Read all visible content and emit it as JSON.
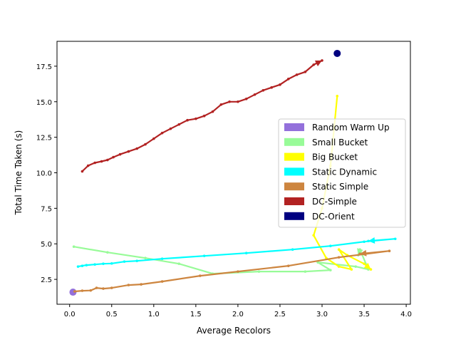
{
  "chart_data": {
    "type": "line",
    "xlabel": "Average Recolors",
    "ylabel": "Total Time Taken (s)",
    "xlim": [
      -0.15,
      4.05
    ],
    "ylim": [
      0.75,
      19.25
    ],
    "xticks": [
      "0.0",
      "0.5",
      "1.0",
      "1.5",
      "2.0",
      "2.5",
      "3.0",
      "3.5",
      "4.0"
    ],
    "yticks": [
      "2.5",
      "5.0",
      "7.5",
      "10.0",
      "12.5",
      "15.0",
      "17.5"
    ],
    "grid": false,
    "legend_position": "center-right",
    "series": [
      {
        "name": "Random Warm Up",
        "color": "#9370DB",
        "marker": "circle",
        "points": [
          [
            0.04,
            1.6
          ]
        ]
      },
      {
        "name": "Small Bucket",
        "color": "#98FB98",
        "points": [
          [
            0.05,
            4.8
          ],
          [
            0.45,
            4.4
          ],
          [
            0.9,
            4.0
          ],
          [
            1.3,
            3.6
          ],
          [
            1.7,
            2.9
          ],
          [
            2.25,
            3.05
          ],
          [
            2.8,
            3.05
          ],
          [
            3.1,
            3.15
          ],
          [
            2.95,
            3.7
          ],
          [
            3.4,
            3.4
          ],
          [
            3.55,
            3.2
          ],
          [
            3.45,
            4.6
          ],
          [
            3.43,
            4.2
          ]
        ]
      },
      {
        "name": "Big Bucket",
        "color": "#FFFF00",
        "points": [
          [
            3.18,
            15.4
          ],
          [
            3.1,
            10.5
          ],
          [
            3.0,
            7.5
          ],
          [
            2.9,
            5.6
          ],
          [
            3.05,
            4.0
          ],
          [
            3.2,
            3.4
          ],
          [
            3.35,
            3.2
          ],
          [
            3.2,
            4.6
          ],
          [
            3.3,
            4.2
          ],
          [
            3.5,
            3.6
          ],
          [
            3.58,
            3.2
          ]
        ]
      },
      {
        "name": "Static Dynamic",
        "color": "#00FFFF",
        "points": [
          [
            0.1,
            3.4
          ],
          [
            0.15,
            3.45
          ],
          [
            0.2,
            3.5
          ],
          [
            0.3,
            3.55
          ],
          [
            0.4,
            3.6
          ],
          [
            0.5,
            3.62
          ],
          [
            0.65,
            3.75
          ],
          [
            0.8,
            3.8
          ],
          [
            1.1,
            3.95
          ],
          [
            1.6,
            4.15
          ],
          [
            2.1,
            4.35
          ],
          [
            2.65,
            4.6
          ],
          [
            3.1,
            4.85
          ],
          [
            3.5,
            5.15
          ],
          [
            3.87,
            5.35
          ],
          [
            3.55,
            5.2
          ]
        ]
      },
      {
        "name": "Static Simple",
        "color": "#CD853F",
        "points": [
          [
            0.06,
            1.65
          ],
          [
            0.15,
            1.7
          ],
          [
            0.25,
            1.72
          ],
          [
            0.32,
            1.9
          ],
          [
            0.4,
            1.85
          ],
          [
            0.5,
            1.9
          ],
          [
            0.7,
            2.1
          ],
          [
            0.85,
            2.15
          ],
          [
            1.1,
            2.35
          ],
          [
            1.55,
            2.75
          ],
          [
            2.0,
            3.05
          ],
          [
            2.6,
            3.45
          ],
          [
            3.2,
            4.05
          ],
          [
            3.8,
            4.5
          ],
          [
            3.45,
            4.3
          ]
        ]
      },
      {
        "name": "DC-Simple",
        "color": "#B22222",
        "points": [
          [
            0.15,
            10.1
          ],
          [
            0.22,
            10.5
          ],
          [
            0.3,
            10.7
          ],
          [
            0.38,
            10.8
          ],
          [
            0.45,
            10.9
          ],
          [
            0.52,
            11.1
          ],
          [
            0.6,
            11.3
          ],
          [
            0.7,
            11.5
          ],
          [
            0.8,
            11.7
          ],
          [
            0.9,
            12.0
          ],
          [
            1.0,
            12.4
          ],
          [
            1.1,
            12.8
          ],
          [
            1.2,
            13.1
          ],
          [
            1.3,
            13.4
          ],
          [
            1.4,
            13.7
          ],
          [
            1.5,
            13.8
          ],
          [
            1.6,
            14.0
          ],
          [
            1.7,
            14.3
          ],
          [
            1.8,
            14.8
          ],
          [
            1.9,
            15.0
          ],
          [
            2.0,
            15.0
          ],
          [
            2.1,
            15.2
          ],
          [
            2.2,
            15.5
          ],
          [
            2.3,
            15.8
          ],
          [
            2.4,
            16.0
          ],
          [
            2.5,
            16.2
          ],
          [
            2.6,
            16.6
          ],
          [
            2.7,
            16.9
          ],
          [
            2.8,
            17.1
          ],
          [
            2.9,
            17.6
          ],
          [
            3.0,
            17.9
          ]
        ]
      },
      {
        "name": "DC-Orient",
        "color": "#000080",
        "marker": "circle",
        "points": [
          [
            3.18,
            18.4
          ]
        ]
      }
    ]
  }
}
